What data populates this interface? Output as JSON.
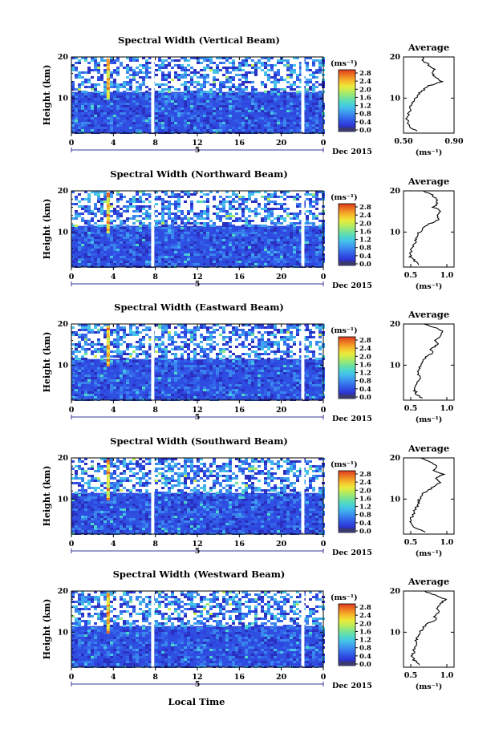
{
  "colorbar_colors": [
    "#3a3a6e",
    "#2b2fbf",
    "#2f45e0",
    "#3263ea",
    "#3a84ee",
    "#3fa5ee",
    "#45c4e8",
    "#4fd8c8",
    "#6ee0a0",
    "#98e878",
    "#c6ec52",
    "#ece83a",
    "#f6c52e",
    "#f29a26",
    "#ea6a20",
    "#de3a1e"
  ],
  "shared": {
    "xticks": [
      "0",
      "4",
      "8",
      "12",
      "16",
      "20",
      "0"
    ],
    "date_label": "Dec 2015",
    "day_label": "5",
    "xlabel": "Local Time",
    "ylabel": "Height (km)",
    "yticks": [
      "20",
      "10"
    ],
    "unit_label": "(ms⁻¹)",
    "colorbar_ticks": [
      "2.8",
      "2.4",
      "2.0",
      "1.6",
      "1.2",
      "0.8",
      "0.4",
      "0.0"
    ],
    "avg_title": "Average",
    "avg_yticks": [
      "20",
      "10"
    ]
  },
  "chart_data": [
    {
      "type": "heatmap",
      "title": "Spectral Width (Vertical Beam)",
      "x_range_hours": [
        0,
        24
      ],
      "y_range_km": [
        1.5,
        20
      ],
      "colorbar_range": [
        0.0,
        2.8
      ],
      "average_profile": {
        "type": "line",
        "xticks": [
          "0.50",
          "0.90"
        ],
        "xlim": [
          0.5,
          0.9
        ],
        "xlabel": "(ms⁻¹)",
        "heights_km": [
          2,
          3,
          4,
          5,
          6,
          7,
          8,
          9,
          10,
          11,
          12,
          13,
          14,
          15,
          16,
          17,
          18,
          19,
          20
        ],
        "values": [
          0.6,
          0.55,
          0.53,
          0.53,
          0.54,
          0.55,
          0.56,
          0.58,
          0.6,
          0.62,
          0.66,
          0.7,
          0.8,
          0.76,
          0.72,
          0.74,
          0.7,
          0.66,
          0.64
        ]
      }
    },
    {
      "type": "heatmap",
      "title": "Spectral Width (Northward Beam)",
      "x_range_hours": [
        0,
        24
      ],
      "y_range_km": [
        1.5,
        20
      ],
      "colorbar_range": [
        0.0,
        2.8
      ],
      "average_profile": {
        "type": "line",
        "xticks": [
          "0.5",
          "1.0"
        ],
        "xlim": [
          0.4,
          1.1
        ],
        "xlabel": "(ms⁻¹)",
        "heights_km": [
          2,
          3,
          4,
          5,
          6,
          7,
          8,
          9,
          10,
          11,
          12,
          13,
          14,
          15,
          16,
          17,
          18,
          19,
          20
        ],
        "values": [
          0.62,
          0.55,
          0.5,
          0.5,
          0.52,
          0.55,
          0.57,
          0.6,
          0.62,
          0.68,
          0.75,
          0.9,
          0.85,
          0.92,
          0.82,
          0.88,
          0.86,
          0.8,
          0.66
        ]
      }
    },
    {
      "type": "heatmap",
      "title": "Spectral Width (Eastward Beam)",
      "x_range_hours": [
        0,
        24
      ],
      "y_range_km": [
        1.5,
        20
      ],
      "colorbar_range": [
        0.0,
        2.8
      ],
      "average_profile": {
        "type": "line",
        "xticks": [
          "0.5",
          "1.0"
        ],
        "xlim": [
          0.4,
          1.1
        ],
        "xlabel": "(ms⁻¹)",
        "heights_km": [
          2,
          3,
          4,
          5,
          6,
          7,
          8,
          9,
          10,
          11,
          12,
          13,
          14,
          15,
          16,
          17,
          18,
          19,
          20
        ],
        "values": [
          0.65,
          0.58,
          0.55,
          0.58,
          0.6,
          0.62,
          0.6,
          0.62,
          0.64,
          0.68,
          0.72,
          0.8,
          0.78,
          0.88,
          0.82,
          0.92,
          0.95,
          0.85,
          0.7
        ]
      }
    },
    {
      "type": "heatmap",
      "title": "Spectral Width (Southward Beam)",
      "x_range_hours": [
        0,
        24
      ],
      "y_range_km": [
        1.5,
        20
      ],
      "colorbar_range": [
        0.0,
        2.8
      ],
      "average_profile": {
        "type": "line",
        "xticks": [
          "0.5",
          "1.0"
        ],
        "xlim": [
          0.4,
          1.1
        ],
        "xlabel": "(ms⁻¹)",
        "heights_km": [
          2,
          3,
          4,
          5,
          6,
          7,
          8,
          9,
          10,
          11,
          12,
          13,
          14,
          15,
          16,
          17,
          18,
          19,
          20
        ],
        "values": [
          0.7,
          0.55,
          0.5,
          0.5,
          0.52,
          0.55,
          0.58,
          0.6,
          0.62,
          0.66,
          0.72,
          0.82,
          0.9,
          0.85,
          0.95,
          0.8,
          0.88,
          0.78,
          0.64
        ]
      }
    },
    {
      "type": "heatmap",
      "title": "Spectral Width (Westward Beam)",
      "x_range_hours": [
        0,
        24
      ],
      "y_range_km": [
        1.5,
        20
      ],
      "colorbar_range": [
        0.0,
        2.8
      ],
      "average_profile": {
        "type": "line",
        "xticks": [
          "0.5",
          "1.0"
        ],
        "xlim": [
          0.4,
          1.1
        ],
        "xlabel": "(ms⁻¹)",
        "heights_km": [
          2,
          3,
          4,
          5,
          6,
          7,
          8,
          9,
          10,
          11,
          12,
          13,
          14,
          15,
          16,
          17,
          18,
          19,
          20
        ],
        "values": [
          0.62,
          0.56,
          0.52,
          0.54,
          0.55,
          0.57,
          0.58,
          0.6,
          0.63,
          0.66,
          0.72,
          0.85,
          0.82,
          0.9,
          0.86,
          0.92,
          0.98,
          0.84,
          0.68
        ]
      }
    }
  ]
}
